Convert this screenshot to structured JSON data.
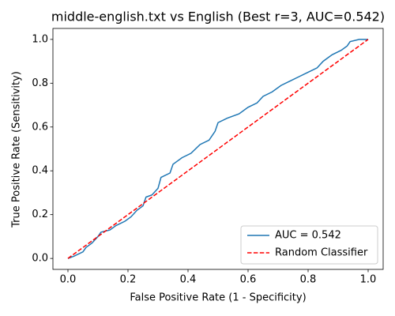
{
  "chart_data": {
    "type": "line",
    "title": "middle-english.txt vs English (Best r=3, AUC=0.542)",
    "x_label": "False Positive Rate (1 - Specificity)",
    "y_label": "True Positive Rate (Sensitivity)",
    "xlim": [
      -0.05,
      1.05
    ],
    "ylim": [
      -0.05,
      1.05
    ],
    "xticks": [
      {
        "value": 0,
        "label": "0.0"
      },
      0.2,
      0.4,
      0.6,
      0.8,
      {
        "value": 1,
        "label": "1.0"
      }
    ],
    "yticks": [
      {
        "value": 0,
        "label": "0.0"
      },
      0.2,
      0.4,
      0.6,
      0.8,
      {
        "value": 1,
        "label": "1.0"
      }
    ],
    "legend": "lower right",
    "series": [
      {
        "name": "AUC = 0.542",
        "color": "#1f77b4",
        "style": "solid",
        "x": [
          0,
          0.02,
          0.05,
          0.06,
          0.08,
          0.1,
          0.11,
          0.14,
          0.16,
          0.19,
          0.21,
          0.23,
          0.25,
          0.26,
          0.28,
          0.3,
          0.31,
          0.34,
          0.35,
          0.38,
          0.41,
          0.44,
          0.47,
          0.49,
          0.5,
          0.53,
          0.57,
          0.6,
          0.63,
          0.65,
          0.68,
          0.71,
          0.74,
          0.77,
          0.8,
          0.83,
          0.85,
          0.88,
          0.91,
          0.93,
          0.94,
          0.97,
          1.0
        ],
        "values": [
          0,
          0.01,
          0.03,
          0.05,
          0.07,
          0.1,
          0.12,
          0.13,
          0.15,
          0.17,
          0.19,
          0.22,
          0.24,
          0.28,
          0.29,
          0.32,
          0.37,
          0.39,
          0.43,
          0.46,
          0.48,
          0.52,
          0.54,
          0.58,
          0.62,
          0.64,
          0.66,
          0.69,
          0.71,
          0.74,
          0.76,
          0.79,
          0.81,
          0.83,
          0.85,
          0.87,
          0.9,
          0.93,
          0.95,
          0.97,
          0.99,
          1.0,
          1.0
        ]
      },
      {
        "name": "Random Classifier",
        "color": "#ff0000",
        "style": "dashed",
        "x": [
          0,
          1
        ],
        "values": [
          0,
          1
        ]
      }
    ]
  }
}
